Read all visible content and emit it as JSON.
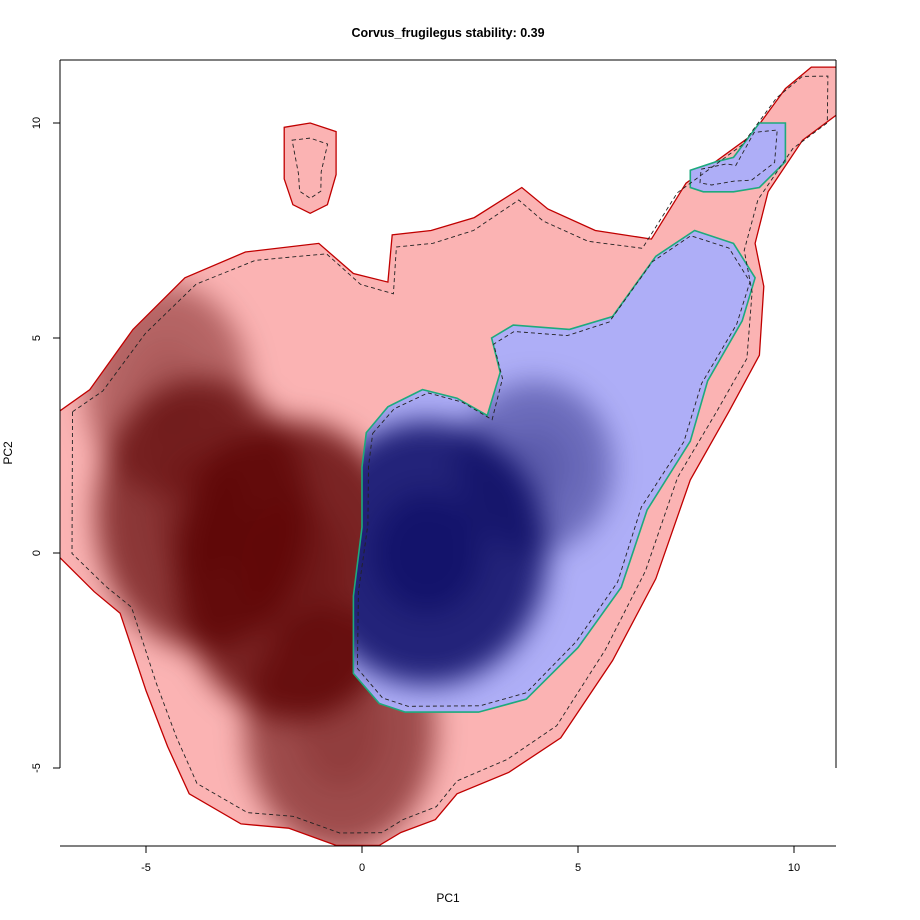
{
  "chart_data": {
    "type": "heatmap",
    "title": "Corvus_frugilegus stability: 0.39",
    "xlabel": "PC1",
    "ylabel": "PC2",
    "xlim": [
      -7,
      11
    ],
    "ylim": [
      -6.8,
      11.5
    ],
    "x_ticks": [
      -5,
      0,
      5,
      10
    ],
    "x_tick_labels": [
      "-5",
      "0",
      "5",
      "10"
    ],
    "y_ticks": [
      -5,
      0,
      5,
      10
    ],
    "y_tick_labels": [
      "-5",
      "0",
      "5",
      "10"
    ],
    "grid": false,
    "legend": "none",
    "colors": {
      "region_a_fill": "#fbb3b3",
      "region_a_outline": "#c00000",
      "region_a_dark": "#5a0000",
      "region_b_fill": "#aeaef7",
      "region_b_outline": "#1daa7d",
      "region_b_dark": "#00005a",
      "dashed_contour": "#222222"
    },
    "regions": {
      "red": [
        [
          -7,
          3.3
        ],
        [
          -6.3,
          3.8
        ],
        [
          -5.3,
          5.2
        ],
        [
          -4.1,
          6.4
        ],
        [
          -2.7,
          7.0
        ],
        [
          -1.0,
          7.2
        ],
        [
          -0.2,
          6.5
        ],
        [
          0.6,
          6.3
        ],
        [
          0.7,
          7.4
        ],
        [
          1.6,
          7.5
        ],
        [
          2.6,
          7.8
        ],
        [
          3.7,
          8.5
        ],
        [
          4.3,
          8.0
        ],
        [
          5.4,
          7.5
        ],
        [
          6.7,
          7.3
        ],
        [
          7.5,
          8.6
        ],
        [
          9.0,
          9.7
        ],
        [
          9.8,
          10.8
        ],
        [
          10.4,
          11.3
        ],
        [
          11.0,
          11.3
        ],
        [
          11.0,
          10.2
        ],
        [
          10.2,
          9.6
        ],
        [
          9.4,
          8.4
        ],
        [
          9.1,
          7.2
        ],
        [
          9.3,
          6.2
        ],
        [
          9.2,
          4.6
        ],
        [
          8.5,
          3.3
        ],
        [
          7.6,
          1.7
        ],
        [
          6.8,
          -0.6
        ],
        [
          5.8,
          -2.5
        ],
        [
          4.6,
          -4.3
        ],
        [
          3.4,
          -5.1
        ],
        [
          2.2,
          -5.6
        ],
        [
          1.7,
          -6.2
        ],
        [
          0.9,
          -6.5
        ],
        [
          0.4,
          -6.8
        ],
        [
          -0.6,
          -6.8
        ],
        [
          -1.7,
          -6.4
        ],
        [
          -2.8,
          -6.3
        ],
        [
          -4.0,
          -5.6
        ],
        [
          -4.5,
          -4.5
        ],
        [
          -5.0,
          -3.2
        ],
        [
          -5.2,
          -2.6
        ],
        [
          -5.6,
          -1.4
        ],
        [
          -6.2,
          -0.9
        ],
        [
          -7.0,
          -0.1
        ]
      ],
      "red_island": [
        [
          -1.8,
          9.9
        ],
        [
          -1.2,
          10.0
        ],
        [
          -0.6,
          9.8
        ],
        [
          -0.6,
          8.8
        ],
        [
          -0.8,
          8.1
        ],
        [
          -1.2,
          7.9
        ],
        [
          -1.6,
          8.1
        ],
        [
          -1.8,
          8.7
        ]
      ],
      "blue": [
        [
          0.1,
          2.8
        ],
        [
          0.6,
          3.4
        ],
        [
          1.4,
          3.8
        ],
        [
          2.2,
          3.6
        ],
        [
          2.9,
          3.2
        ],
        [
          3.2,
          4.2
        ],
        [
          3.0,
          5.0
        ],
        [
          3.5,
          5.3
        ],
        [
          4.8,
          5.2
        ],
        [
          5.8,
          5.5
        ],
        [
          6.8,
          6.9
        ],
        [
          7.7,
          7.5
        ],
        [
          8.6,
          7.2
        ],
        [
          9.1,
          6.4
        ],
        [
          8.8,
          5.4
        ],
        [
          8.0,
          4.0
        ],
        [
          7.6,
          2.6
        ],
        [
          6.6,
          1.0
        ],
        [
          6.0,
          -0.8
        ],
        [
          5.0,
          -2.2
        ],
        [
          3.8,
          -3.4
        ],
        [
          2.7,
          -3.7
        ],
        [
          1.0,
          -3.7
        ],
        [
          0.4,
          -3.5
        ],
        [
          -0.2,
          -2.8
        ],
        [
          -0.2,
          -1.0
        ],
        [
          0.0,
          0.6
        ],
        [
          0.0,
          2.0
        ]
      ],
      "blue_island": [
        [
          7.6,
          8.9
        ],
        [
          8.2,
          9.1
        ],
        [
          8.6,
          9.2
        ],
        [
          9.2,
          10.0
        ],
        [
          9.8,
          10.0
        ],
        [
          9.8,
          9.1
        ],
        [
          9.2,
          8.5
        ],
        [
          8.6,
          8.4
        ],
        [
          7.9,
          8.4
        ],
        [
          7.6,
          8.5
        ]
      ]
    },
    "density_peaks": [
      {
        "group": "red",
        "x": -1.6,
        "y": -0.4,
        "intensity": 1.0
      },
      {
        "group": "red",
        "x": -3.7,
        "y": 0.9,
        "intensity": 0.8
      },
      {
        "group": "red",
        "x": -0.5,
        "y": -4.1,
        "intensity": 0.6
      },
      {
        "group": "red",
        "x": -4.5,
        "y": 3.8,
        "intensity": 0.35
      },
      {
        "group": "blue",
        "x": 1.5,
        "y": 0.0,
        "intensity": 1.0
      },
      {
        "group": "blue",
        "x": 4.0,
        "y": 2.0,
        "intensity": 0.3
      }
    ]
  }
}
